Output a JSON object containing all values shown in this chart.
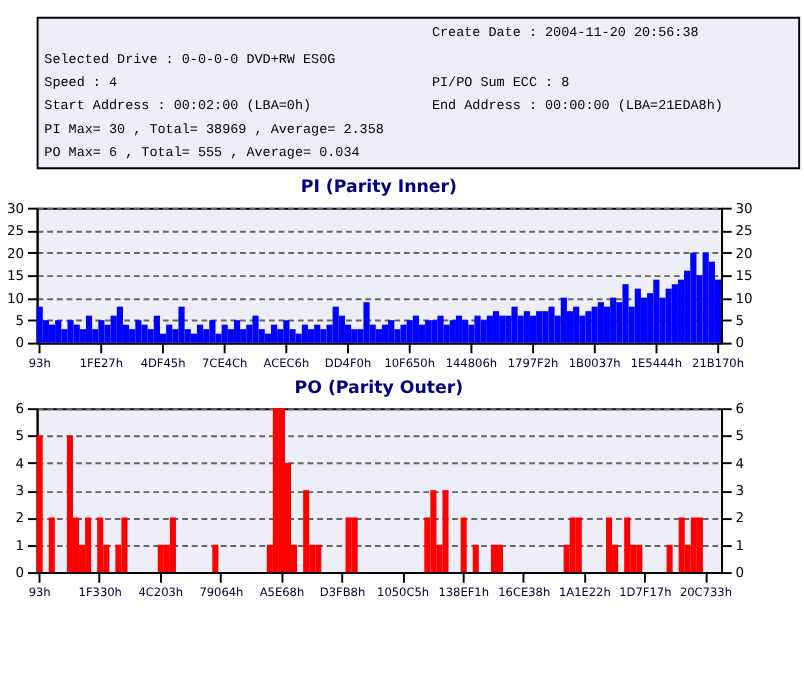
{
  "chart_data": [
    {
      "type": "other",
      "annotations": [
        "Create Date : 2004-11-20 20:56:38",
        "Selected Drive : 0-0-0-0 DVD+RW ES0G",
        "Speed : 4",
        "PI/PO Sum ECC : 8",
        "Start Address : 00:02:00 (LBA=0h)",
        "End Address : 00:00:00 (LBA=21EDA8h)",
        "PI Max= 30 , Total= 38969 , Average= 2.358",
        "PO Max= 6 , Total= 555 , Average= 0.034"
      ]
    },
    {
      "type": "bar",
      "title": "PI (Parity Inner)",
      "categories": [
        "93h",
        null,
        null,
        null,
        null,
        null,
        null,
        null,
        null,
        null,
        "1FE27h",
        null,
        null,
        null,
        null,
        null,
        null,
        null,
        null,
        null,
        "4DF45h",
        null,
        null,
        null,
        null,
        null,
        null,
        null,
        null,
        null,
        "7CE4Ch",
        null,
        null,
        null,
        null,
        null,
        null,
        null,
        null,
        null,
        "ACEC6h",
        null,
        null,
        null,
        null,
        null,
        null,
        null,
        null,
        null,
        "DD4F0h",
        null,
        null,
        null,
        null,
        null,
        null,
        null,
        null,
        null,
        "10F650h",
        null,
        null,
        null,
        null,
        null,
        null,
        null,
        null,
        null,
        "144806h",
        null,
        null,
        null,
        null,
        null,
        null,
        null,
        null,
        null,
        "1797F2h",
        null,
        null,
        null,
        null,
        null,
        null,
        null,
        null,
        null,
        "1B0037h",
        null,
        null,
        null,
        null,
        null,
        null,
        null,
        null,
        null,
        "1E5444h",
        null,
        null,
        null,
        null,
        null,
        null,
        null,
        null,
        null,
        "21B170h"
      ],
      "series": [
        {
          "color": "#0000ff",
          "values": [
            8,
            5,
            4,
            5,
            3,
            5,
            4,
            3,
            6,
            3,
            5,
            4,
            6,
            8,
            4,
            3,
            5,
            4,
            3,
            6,
            2,
            4,
            3,
            8,
            3,
            2,
            4,
            3,
            5,
            2,
            4,
            3,
            5,
            3,
            4,
            6,
            3,
            2,
            4,
            3,
            5,
            3,
            2,
            4,
            3,
            4,
            3,
            4,
            8,
            6,
            4,
            3,
            3,
            9,
            4,
            3,
            4,
            5,
            3,
            4,
            5,
            6,
            4,
            5,
            5,
            6,
            4,
            5,
            6,
            5,
            4,
            6,
            5,
            6,
            7,
            6,
            6,
            8,
            6,
            7,
            6,
            7,
            7,
            8,
            6,
            10,
            7,
            8,
            6,
            7,
            8,
            9,
            8,
            10,
            9,
            13,
            8,
            12,
            10,
            11,
            14,
            10,
            12,
            13,
            14,
            16,
            20,
            15,
            20,
            18,
            14
          ]
        }
      ],
      "ylim": [
        0,
        30
      ],
      "yticks": [
        0,
        5,
        10,
        15,
        20,
        25,
        30
      ],
      "y2lim": [
        0,
        30
      ],
      "y2ticks": [
        0,
        5,
        10,
        15,
        20,
        25,
        30
      ],
      "grid": "y",
      "line_style": "dashed"
    },
    {
      "type": "bar",
      "title": "PO (Parity Outer)",
      "categories": [
        "93h",
        null,
        null,
        null,
        null,
        null,
        null,
        null,
        null,
        null,
        "1F330h",
        null,
        null,
        null,
        null,
        null,
        null,
        null,
        null,
        null,
        "4C203h",
        null,
        null,
        null,
        null,
        null,
        null,
        null,
        null,
        null,
        "79064h",
        null,
        null,
        null,
        null,
        null,
        null,
        null,
        null,
        null,
        "A5E68h",
        null,
        null,
        null,
        null,
        null,
        null,
        null,
        null,
        null,
        "D3FB8h",
        null,
        null,
        null,
        null,
        null,
        null,
        null,
        null,
        null,
        "1050C5h",
        null,
        null,
        null,
        null,
        null,
        null,
        null,
        null,
        null,
        "138EF1h",
        null,
        null,
        null,
        null,
        null,
        null,
        null,
        null,
        null,
        "16CE38h",
        null,
        null,
        null,
        null,
        null,
        null,
        null,
        null,
        null,
        "1A1E22h",
        null,
        null,
        null,
        null,
        null,
        null,
        null,
        null,
        null,
        "1D7F17h",
        null,
        null,
        null,
        null,
        null,
        null,
        null,
        null,
        null,
        "20C733h",
        null,
        null
      ],
      "series": [
        {
          "color": "#ff0000",
          "values": [
            5,
            0,
            2,
            0,
            0,
            5,
            2,
            1,
            2,
            0,
            2,
            1,
            0,
            1,
            2,
            0,
            0,
            0,
            0,
            0,
            1,
            1,
            2,
            0,
            0,
            0,
            0,
            0,
            0,
            1,
            0,
            0,
            0,
            0,
            0,
            0,
            0,
            0,
            1,
            6,
            6,
            4,
            1,
            0,
            3,
            1,
            1,
            0,
            0,
            0,
            0,
            2,
            2,
            0,
            0,
            0,
            0,
            0,
            0,
            0,
            0,
            0,
            0,
            0,
            2,
            3,
            1,
            3,
            0,
            0,
            2,
            0,
            1,
            0,
            0,
            1,
            1,
            0,
            0,
            0,
            0,
            0,
            0,
            0,
            0,
            0,
            0,
            1,
            2,
            2,
            0,
            0,
            0,
            0,
            2,
            1,
            0,
            2,
            1,
            1,
            0,
            0,
            0,
            0,
            1,
            0,
            2,
            1,
            2,
            2,
            0,
            0,
            0
          ]
        }
      ],
      "ylim": [
        0,
        6
      ],
      "yticks": [
        0,
        1,
        2,
        3,
        4,
        5,
        6
      ],
      "y2lim": [
        0,
        6
      ],
      "y2ticks": [
        0,
        1,
        2,
        3,
        4,
        5,
        6
      ],
      "grid": "y",
      "line_style": "dashed"
    }
  ]
}
